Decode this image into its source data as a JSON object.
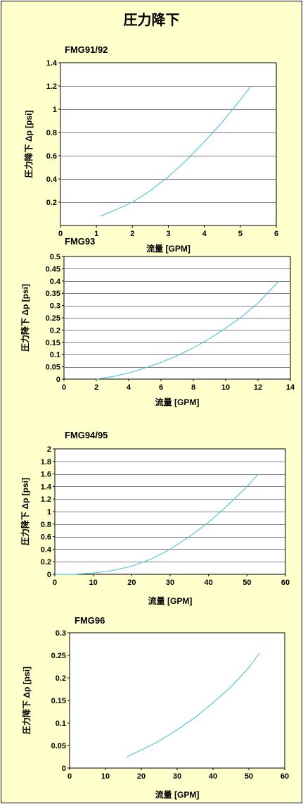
{
  "page_title": "圧力降下",
  "colors": {
    "background": "#ffffcc",
    "plot_area": "#ffffff",
    "gridline": "#808080",
    "series": "#5bc4dc",
    "border": "#000000"
  },
  "chart_data": [
    {
      "type": "line",
      "title": "FMG91/92",
      "xlabel": "流量 [GPM]",
      "ylabel": "圧力降下 Δp [psi]",
      "xlim": [
        0,
        6
      ],
      "ylim": [
        0,
        1.4
      ],
      "x_ticks": [
        "0",
        "1",
        "2",
        "3",
        "4",
        "5",
        "6"
      ],
      "y_ticks": [
        "0.2",
        "0.4",
        "0.6",
        "0.8",
        "1",
        "1.2",
        "1.4"
      ],
      "grid": "horizontal",
      "series": [
        {
          "x": [
            1.1,
            1.5,
            2,
            2.5,
            3,
            3.5,
            4,
            4.5,
            5,
            5.3
          ],
          "y": [
            0.08,
            0.13,
            0.2,
            0.3,
            0.42,
            0.56,
            0.72,
            0.89,
            1.08,
            1.2
          ]
        }
      ]
    },
    {
      "type": "line",
      "title": "FMG93",
      "xlabel": "流量 [GPM]",
      "ylabel": "圧力降下 Δp [psi]",
      "xlim": [
        0,
        14
      ],
      "ylim": [
        0,
        0.5
      ],
      "x_ticks": [
        "0",
        "2",
        "4",
        "6",
        "8",
        "10",
        "12",
        "14"
      ],
      "y_ticks": [
        "0",
        "0.05",
        "0.1",
        "0.15",
        "0.2",
        "0.25",
        "0.3",
        "0.35",
        "0.4",
        "0.45",
        "0.5"
      ],
      "grid": "horizontal",
      "series": [
        {
          "x": [
            2,
            3,
            4,
            5,
            6,
            7,
            8,
            9,
            10,
            11,
            12,
            13.3
          ],
          "y": [
            0,
            0.01,
            0.025,
            0.045,
            0.068,
            0.095,
            0.128,
            0.165,
            0.208,
            0.255,
            0.31,
            0.4
          ]
        }
      ]
    },
    {
      "type": "line",
      "title": "FMG94/95",
      "xlabel": "流量 [GPM]",
      "ylabel": "圧力降下 Δp [psi]",
      "xlim": [
        0,
        60
      ],
      "ylim": [
        0,
        2
      ],
      "x_ticks": [
        "0",
        "10",
        "20",
        "30",
        "40",
        "50",
        "60"
      ],
      "y_ticks": [
        "0",
        "0.2",
        "0.4",
        "0.6",
        "0.8",
        "1",
        "1.2",
        "1.4",
        "1.6",
        "1.8",
        "2"
      ],
      "grid": "horizontal",
      "series": [
        {
          "x": [
            0,
            5,
            10,
            15,
            20,
            25,
            30,
            35,
            40,
            45,
            50,
            53
          ],
          "y": [
            0,
            0,
            0.02,
            0.06,
            0.13,
            0.24,
            0.4,
            0.6,
            0.83,
            1.1,
            1.4,
            1.6
          ]
        }
      ]
    },
    {
      "type": "line",
      "title": "FMG96",
      "xlabel": "流量 [GPM]",
      "ylabel": "圧力降下 Δp [psi]",
      "xlim": [
        0,
        60
      ],
      "ylim": [
        0,
        0.3
      ],
      "x_ticks": [
        "0",
        "10",
        "20",
        "30",
        "40",
        "50",
        "60"
      ],
      "y_ticks": [
        "0",
        "0.05",
        "0.1",
        "0.15",
        "0.2",
        "0.25",
        "0.3"
      ],
      "grid": "none",
      "series": [
        {
          "x": [
            16,
            20,
            25,
            30,
            35,
            40,
            45,
            50,
            53
          ],
          "y": [
            0.025,
            0.04,
            0.06,
            0.085,
            0.112,
            0.145,
            0.18,
            0.223,
            0.255
          ]
        }
      ]
    }
  ]
}
